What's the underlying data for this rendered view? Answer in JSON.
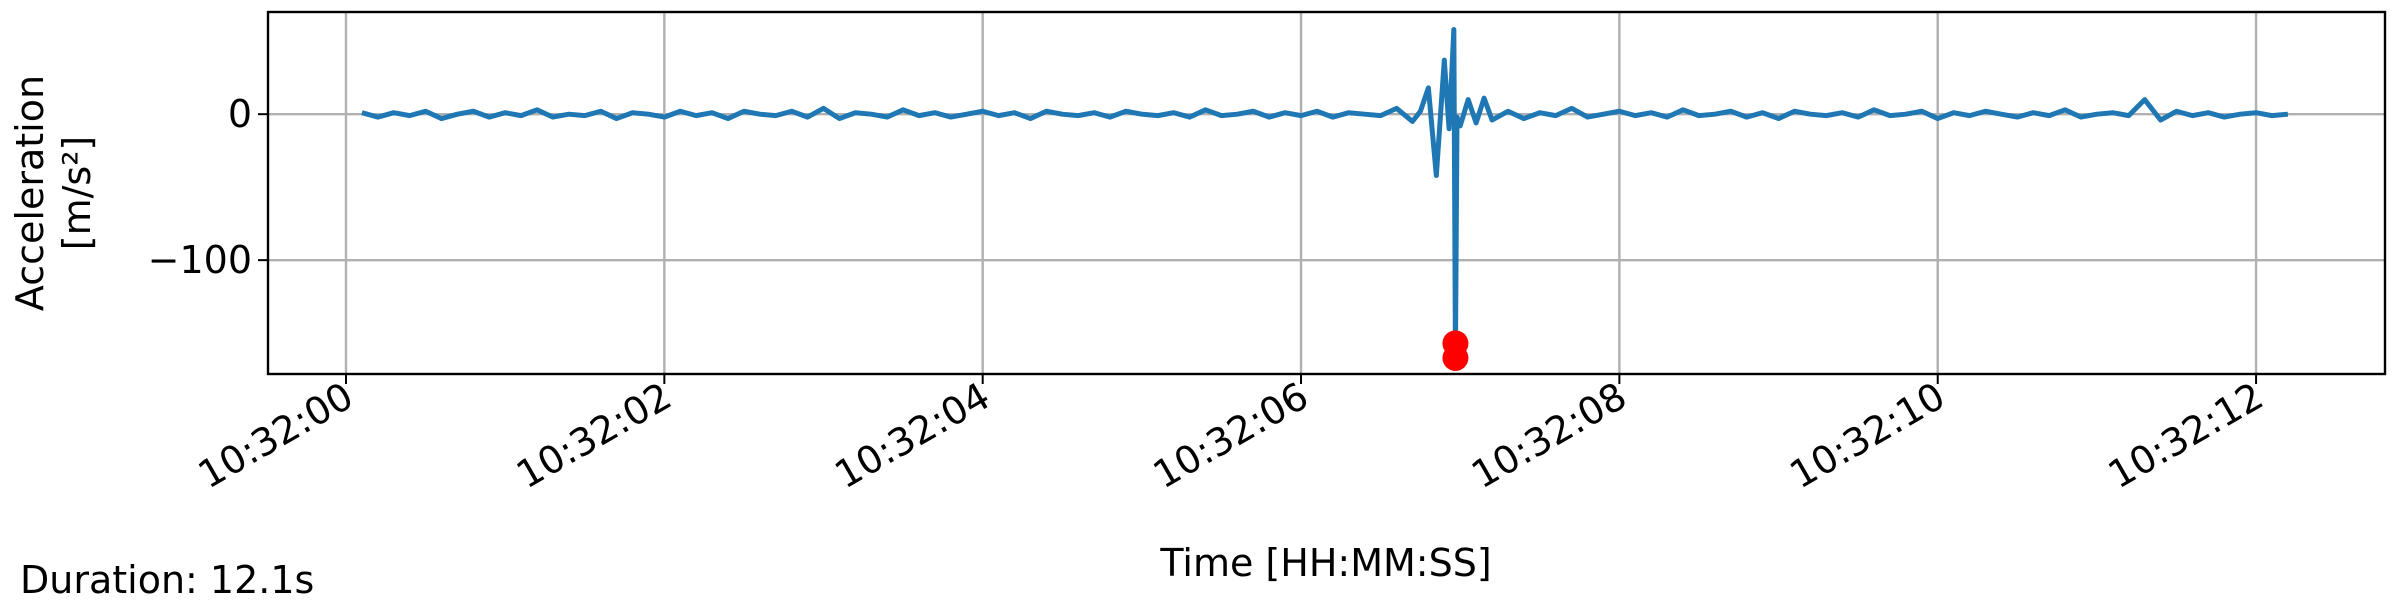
{
  "chart_data": {
    "type": "line",
    "x_label": "Time [HH:MM:SS]",
    "y_label": [
      "Acceleration",
      "[m/s²]"
    ],
    "annotation": "Duration: 12.1s",
    "x": [
      0.1,
      0.2,
      0.3,
      0.4,
      0.5,
      0.6,
      0.7,
      0.8,
      0.9,
      1.0,
      1.1,
      1.2,
      1.3,
      1.4,
      1.5,
      1.6,
      1.7,
      1.8,
      1.9,
      2.0,
      2.1,
      2.2,
      2.3,
      2.4,
      2.5,
      2.6,
      2.7,
      2.8,
      2.9,
      3.0,
      3.1,
      3.2,
      3.3,
      3.4,
      3.5,
      3.6,
      3.7,
      3.8,
      3.9,
      4.0,
      4.1,
      4.2,
      4.3,
      4.4,
      4.5,
      4.6,
      4.7,
      4.8,
      4.9,
      5.0,
      5.1,
      5.2,
      5.3,
      5.4,
      5.5,
      5.6,
      5.7,
      5.8,
      5.9,
      6.0,
      6.1,
      6.2,
      6.3,
      6.4,
      6.5,
      6.6,
      6.7,
      6.75,
      6.8,
      6.85,
      6.9,
      6.93,
      6.96,
      6.97,
      6.98,
      7.0,
      7.05,
      7.1,
      7.15,
      7.2,
      7.3,
      7.4,
      7.5,
      7.6,
      7.7,
      7.8,
      7.9,
      8.0,
      8.1,
      8.2,
      8.3,
      8.4,
      8.5,
      8.6,
      8.7,
      8.8,
      8.9,
      9.0,
      9.1,
      9.2,
      9.3,
      9.4,
      9.5,
      9.6,
      9.7,
      9.8,
      9.9,
      10.0,
      10.1,
      10.2,
      10.3,
      10.4,
      10.5,
      10.6,
      10.7,
      10.8,
      10.9,
      11.0,
      11.1,
      11.2,
      11.3,
      11.4,
      11.5,
      11.6,
      11.7,
      11.8,
      11.9,
      12.0,
      12.1,
      12.2
    ],
    "series": [
      {
        "color": "#1f77b4",
        "style": "line",
        "values": [
          1,
          -2,
          1,
          -1,
          2,
          -3,
          0,
          2,
          -2,
          1,
          -1,
          3,
          -2,
          0,
          -1,
          2,
          -3,
          1,
          0,
          -2,
          2,
          -1,
          1,
          -3,
          2,
          0,
          -1,
          2,
          -2,
          4,
          -3,
          1,
          0,
          -2,
          3,
          -1,
          1,
          -2,
          0,
          2,
          -1,
          1,
          -3,
          2,
          0,
          -1,
          1,
          -2,
          2,
          0,
          -1,
          1,
          -2,
          3,
          -1,
          0,
          2,
          -2,
          1,
          -1,
          2,
          -2,
          1,
          0,
          -1,
          4,
          -5,
          2,
          18,
          -42,
          37,
          -10,
          58,
          -165,
          -2,
          -8,
          10,
          -6,
          11,
          -4,
          2,
          -3,
          1,
          -1,
          4,
          -2,
          0,
          2,
          -1,
          1,
          -2,
          3,
          -1,
          0,
          2,
          -2,
          1,
          -3,
          2,
          0,
          -1,
          1,
          -2,
          3,
          -1,
          0,
          2,
          -3,
          1,
          -1,
          2,
          0,
          -2,
          1,
          -1,
          3,
          -2,
          0,
          1,
          -1,
          10,
          -4,
          2,
          -1,
          1,
          -2,
          0,
          1,
          -1,
          0
        ]
      },
      {
        "color": "#ff0000",
        "style": "marker",
        "x": [
          6.97,
          6.97
        ],
        "values": [
          -157,
          -167
        ]
      }
    ],
    "xlim": [
      -0.49,
      12.81
    ],
    "ylim": [
      -178,
      70
    ],
    "xticks": [
      {
        "value": 0,
        "label": "10:32:00"
      },
      {
        "value": 2,
        "label": "10:32:02"
      },
      {
        "value": 4,
        "label": "10:32:04"
      },
      {
        "value": 6,
        "label": "10:32:06"
      },
      {
        "value": 8,
        "label": "10:32:08"
      },
      {
        "value": 10,
        "label": "10:32:10"
      },
      {
        "value": 12,
        "label": "10:32:12"
      }
    ],
    "yticks": [
      {
        "value": -100,
        "label": "−100"
      },
      0
    ],
    "grid": true
  }
}
